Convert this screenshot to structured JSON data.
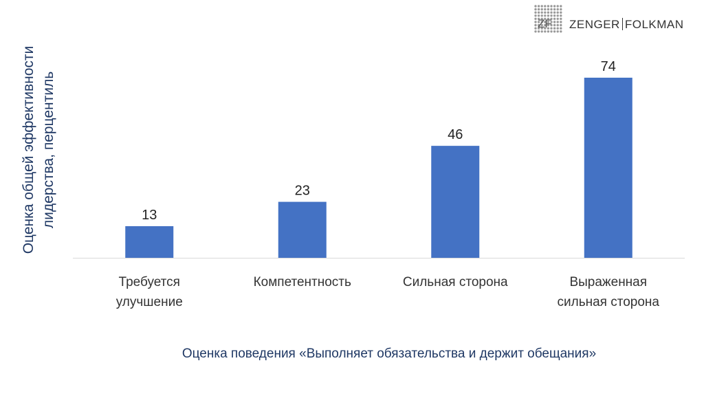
{
  "logo": {
    "mark": "ZF",
    "name_left": "ZENGER",
    "name_right": "FOLKMAN"
  },
  "chart_data": {
    "type": "bar",
    "categories": [
      [
        "Требуется",
        "улучшение"
      ],
      [
        "Компетентность"
      ],
      [
        "Сильная сторона"
      ],
      [
        "Выраженная",
        "сильная сторона"
      ]
    ],
    "values": [
      13,
      23,
      46,
      74
    ],
    "ylabel": [
      "Оценка общей эффективности",
      "лидерства, перцентиль"
    ],
    "xlabel": "Оценка поведения «Выполняет обязательства и держит обещания»",
    "ylim": [
      0,
      74
    ],
    "bar_color": "#4472C4",
    "text_color": "#1F3864",
    "grid": false
  }
}
